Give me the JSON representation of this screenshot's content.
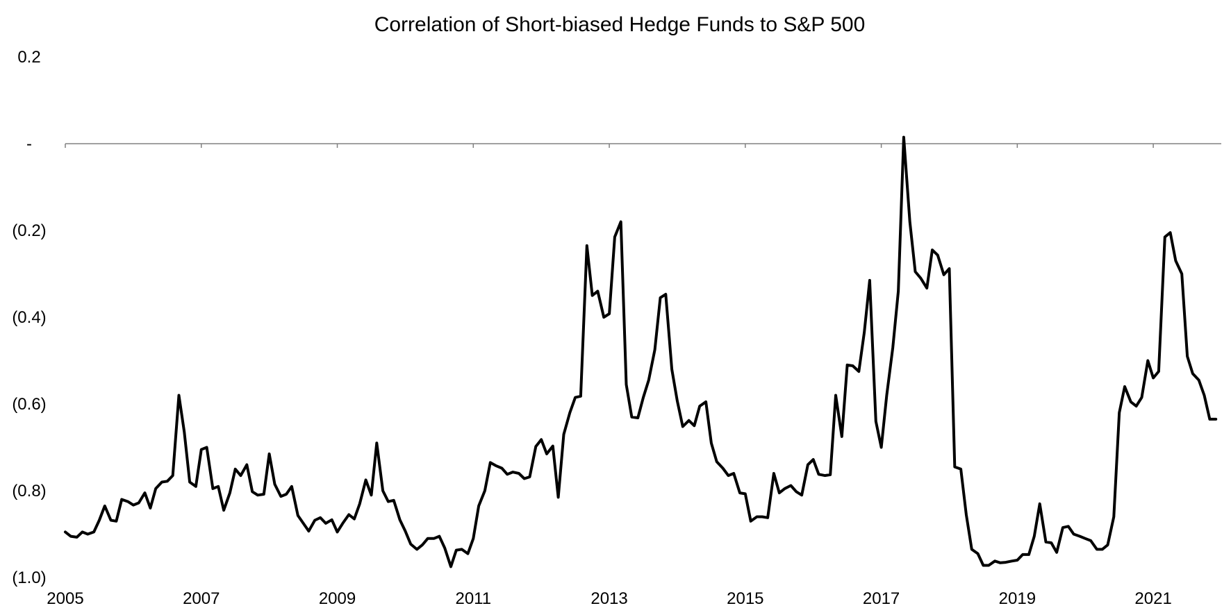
{
  "chart_data": {
    "type": "line",
    "title": "Correlation of Short-biased Hedge Funds to S&P 500",
    "xlabel": "",
    "ylabel": "",
    "xlim": [
      2005.0,
      2022.0
    ],
    "ylim": [
      -1.0,
      0.2
    ],
    "grid": false,
    "legend": "none",
    "x_ticks": [
      {
        "value": 2005,
        "label": "2005"
      },
      {
        "value": 2007,
        "label": "2007"
      },
      {
        "value": 2009,
        "label": "2009"
      },
      {
        "value": 2011,
        "label": "2011"
      },
      {
        "value": 2013,
        "label": "2013"
      },
      {
        "value": 2015,
        "label": "2015"
      },
      {
        "value": 2017,
        "label": "2017"
      },
      {
        "value": 2019,
        "label": "2019"
      },
      {
        "value": 2021,
        "label": "2021"
      }
    ],
    "y_ticks": [
      {
        "value": 0.2,
        "label": "0.2"
      },
      {
        "value": 0.0,
        "label": "-"
      },
      {
        "value": -0.2,
        "label": "(0.2)"
      },
      {
        "value": -0.4,
        "label": "(0.4)"
      },
      {
        "value": -0.6,
        "label": "(0.6)"
      },
      {
        "value": -0.8,
        "label": "(0.8)"
      },
      {
        "value": -1.0,
        "label": "(1.0)"
      }
    ],
    "colors": {
      "series": "#000000",
      "axis": "#808080"
    },
    "series": [
      {
        "x": [
          2005.0,
          2005.08,
          2005.17,
          2005.25,
          2005.33,
          2005.42,
          2005.5,
          2005.58,
          2005.67,
          2005.75,
          2005.83,
          2005.92,
          2006.0,
          2006.08,
          2006.17,
          2006.25,
          2006.33,
          2006.42,
          2006.5,
          2006.58,
          2006.67,
          2006.75,
          2006.83,
          2006.92,
          2007.0,
          2007.08,
          2007.17,
          2007.25,
          2007.33,
          2007.42,
          2007.5,
          2007.58,
          2007.67,
          2007.75,
          2007.83,
          2007.92,
          2008.0,
          2008.08,
          2008.17,
          2008.25,
          2008.33,
          2008.42,
          2008.5,
          2008.58,
          2008.67,
          2008.75,
          2008.83,
          2008.92,
          2009.0,
          2009.08,
          2009.17,
          2009.25,
          2009.33,
          2009.42,
          2009.5,
          2009.58,
          2009.67,
          2009.75,
          2009.83,
          2009.92,
          2010.0,
          2010.08,
          2010.17,
          2010.25,
          2010.33,
          2010.42,
          2010.5,
          2010.58,
          2010.67,
          2010.75,
          2010.83,
          2010.92,
          2011.0,
          2011.08,
          2011.17,
          2011.25,
          2011.33,
          2011.42,
          2011.5,
          2011.58,
          2011.67,
          2011.75,
          2011.83,
          2011.92,
          2012.0,
          2012.08,
          2012.17,
          2012.25,
          2012.33,
          2012.42,
          2012.5,
          2012.58,
          2012.67,
          2012.75,
          2012.83,
          2012.92,
          2013.0,
          2013.08,
          2013.17,
          2013.25,
          2013.33,
          2013.42,
          2013.5,
          2013.58,
          2013.67,
          2013.75,
          2013.83,
          2013.92,
          2014.0,
          2014.08,
          2014.17,
          2014.25,
          2014.33,
          2014.42,
          2014.5,
          2014.58,
          2014.67,
          2014.75,
          2014.83,
          2014.92,
          2015.0,
          2015.08,
          2015.17,
          2015.25,
          2015.33,
          2015.42,
          2015.5,
          2015.58,
          2015.67,
          2015.75,
          2015.83,
          2015.92,
          2016.0,
          2016.08,
          2016.17,
          2016.25,
          2016.33,
          2016.42,
          2016.5,
          2016.58,
          2016.67,
          2016.75,
          2016.83,
          2016.92,
          2017.0,
          2017.08,
          2017.17,
          2017.25,
          2017.33,
          2017.42,
          2017.5,
          2017.58,
          2017.67,
          2017.75,
          2017.83,
          2017.92,
          2018.0,
          2018.08,
          2018.17,
          2018.25,
          2018.33,
          2018.42,
          2018.5,
          2018.58,
          2018.67,
          2018.75,
          2018.83,
          2018.92,
          2019.0,
          2019.08,
          2019.17,
          2019.25,
          2019.33,
          2019.42,
          2019.5,
          2019.58,
          2019.67,
          2019.75,
          2019.83,
          2019.92,
          2020.0,
          2020.08,
          2020.17,
          2020.25,
          2020.33,
          2020.42,
          2020.5,
          2020.58,
          2020.67,
          2020.75,
          2020.83,
          2020.92,
          2021.0,
          2021.08,
          2021.17,
          2021.25,
          2021.33,
          2021.42,
          2021.5,
          2021.58,
          2021.67,
          2021.75,
          2021.83,
          2021.92
        ],
        "values": [
          -0.895,
          -0.905,
          -0.907,
          -0.895,
          -0.9,
          -0.895,
          -0.868,
          -0.835,
          -0.868,
          -0.87,
          -0.82,
          -0.825,
          -0.833,
          -0.828,
          -0.805,
          -0.84,
          -0.795,
          -0.78,
          -0.778,
          -0.765,
          -0.58,
          -0.665,
          -0.78,
          -0.79,
          -0.705,
          -0.7,
          -0.795,
          -0.79,
          -0.845,
          -0.805,
          -0.75,
          -0.765,
          -0.74,
          -0.802,
          -0.81,
          -0.808,
          -0.715,
          -0.785,
          -0.813,
          -0.808,
          -0.79,
          -0.857,
          -0.875,
          -0.893,
          -0.868,
          -0.862,
          -0.875,
          -0.867,
          -0.895,
          -0.875,
          -0.855,
          -0.865,
          -0.83,
          -0.775,
          -0.81,
          -0.69,
          -0.8,
          -0.825,
          -0.822,
          -0.867,
          -0.893,
          -0.923,
          -0.935,
          -0.925,
          -0.91,
          -0.91,
          -0.905,
          -0.932,
          -0.975,
          -0.937,
          -0.935,
          -0.945,
          -0.91,
          -0.835,
          -0.8,
          -0.735,
          -0.742,
          -0.748,
          -0.762,
          -0.757,
          -0.76,
          -0.772,
          -0.768,
          -0.698,
          -0.682,
          -0.715,
          -0.697,
          -0.815,
          -0.67,
          -0.62,
          -0.585,
          -0.582,
          -0.235,
          -0.35,
          -0.34,
          -0.4,
          -0.392,
          -0.215,
          -0.18,
          -0.555,
          -0.63,
          -0.632,
          -0.585,
          -0.545,
          -0.475,
          -0.355,
          -0.347,
          -0.52,
          -0.593,
          -0.652,
          -0.638,
          -0.65,
          -0.605,
          -0.595,
          -0.69,
          -0.733,
          -0.748,
          -0.765,
          -0.76,
          -0.805,
          -0.807,
          -0.87,
          -0.86,
          -0.86,
          -0.862,
          -0.76,
          -0.805,
          -0.795,
          -0.788,
          -0.802,
          -0.81,
          -0.74,
          -0.728,
          -0.762,
          -0.765,
          -0.763,
          -0.58,
          -0.675,
          -0.51,
          -0.512,
          -0.525,
          -0.435,
          -0.315,
          -0.64,
          -0.7,
          -0.58,
          -0.47,
          -0.34,
          0.015,
          -0.18,
          -0.295,
          -0.31,
          -0.333,
          -0.245,
          -0.257,
          -0.302,
          -0.288,
          -0.745,
          -0.75,
          -0.855,
          -0.935,
          -0.945,
          -0.972,
          -0.972,
          -0.962,
          -0.966,
          -0.965,
          -0.962,
          -0.96,
          -0.947,
          -0.947,
          -0.905,
          -0.83,
          -0.918,
          -0.92,
          -0.942,
          -0.885,
          -0.882,
          -0.9,
          -0.905,
          -0.91,
          -0.915,
          -0.935,
          -0.935,
          -0.925,
          -0.86,
          -0.62,
          -0.56,
          -0.595,
          -0.605,
          -0.585,
          -0.5,
          -0.54,
          -0.525,
          -0.215,
          -0.205,
          -0.27,
          -0.3,
          -0.49,
          -0.53,
          -0.545,
          -0.58,
          -0.635,
          -0.635
        ]
      }
    ]
  }
}
